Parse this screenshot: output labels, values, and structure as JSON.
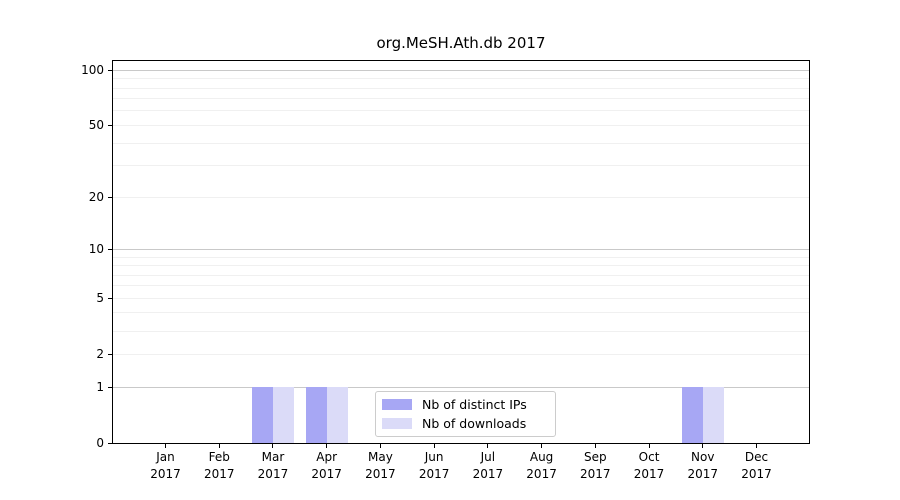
{
  "chart_data": {
    "type": "bar",
    "title": "org.MeSH.Ath.db 2017",
    "xlabel": "",
    "ylabel": "",
    "year_label": "2017",
    "categories": [
      "Jan",
      "Feb",
      "Mar",
      "Apr",
      "May",
      "Jun",
      "Jul",
      "Aug",
      "Sep",
      "Oct",
      "Nov",
      "Dec"
    ],
    "series": [
      {
        "name": "Nb of distinct IPs",
        "color": "#a7a7f4",
        "values": [
          0,
          0,
          1,
          1,
          0,
          0,
          0,
          0,
          0,
          0,
          1,
          0
        ]
      },
      {
        "name": "Nb of downloads",
        "color": "#dbdbf8",
        "values": [
          0,
          0,
          1,
          1,
          0,
          0,
          0,
          0,
          0,
          0,
          1,
          0
        ]
      }
    ],
    "yticks": [
      0,
      1,
      2,
      5,
      10,
      20,
      50,
      100
    ],
    "minor_gridline_values": [
      2,
      3,
      4,
      5,
      6,
      7,
      8,
      9,
      20,
      30,
      40,
      50,
      60,
      70,
      80,
      90
    ],
    "major_gridline_values": [
      1,
      10,
      100
    ],
    "scale": "log1p",
    "ylim": [
      0,
      113
    ],
    "grid": "horizontal",
    "legend_position": "lower center"
  },
  "colors": {
    "axis": "#000000",
    "major_grid": "#c9c9c9",
    "minor_grid": "#f0f0f0",
    "legend_border": "#cccccc",
    "background": "#ffffff"
  }
}
